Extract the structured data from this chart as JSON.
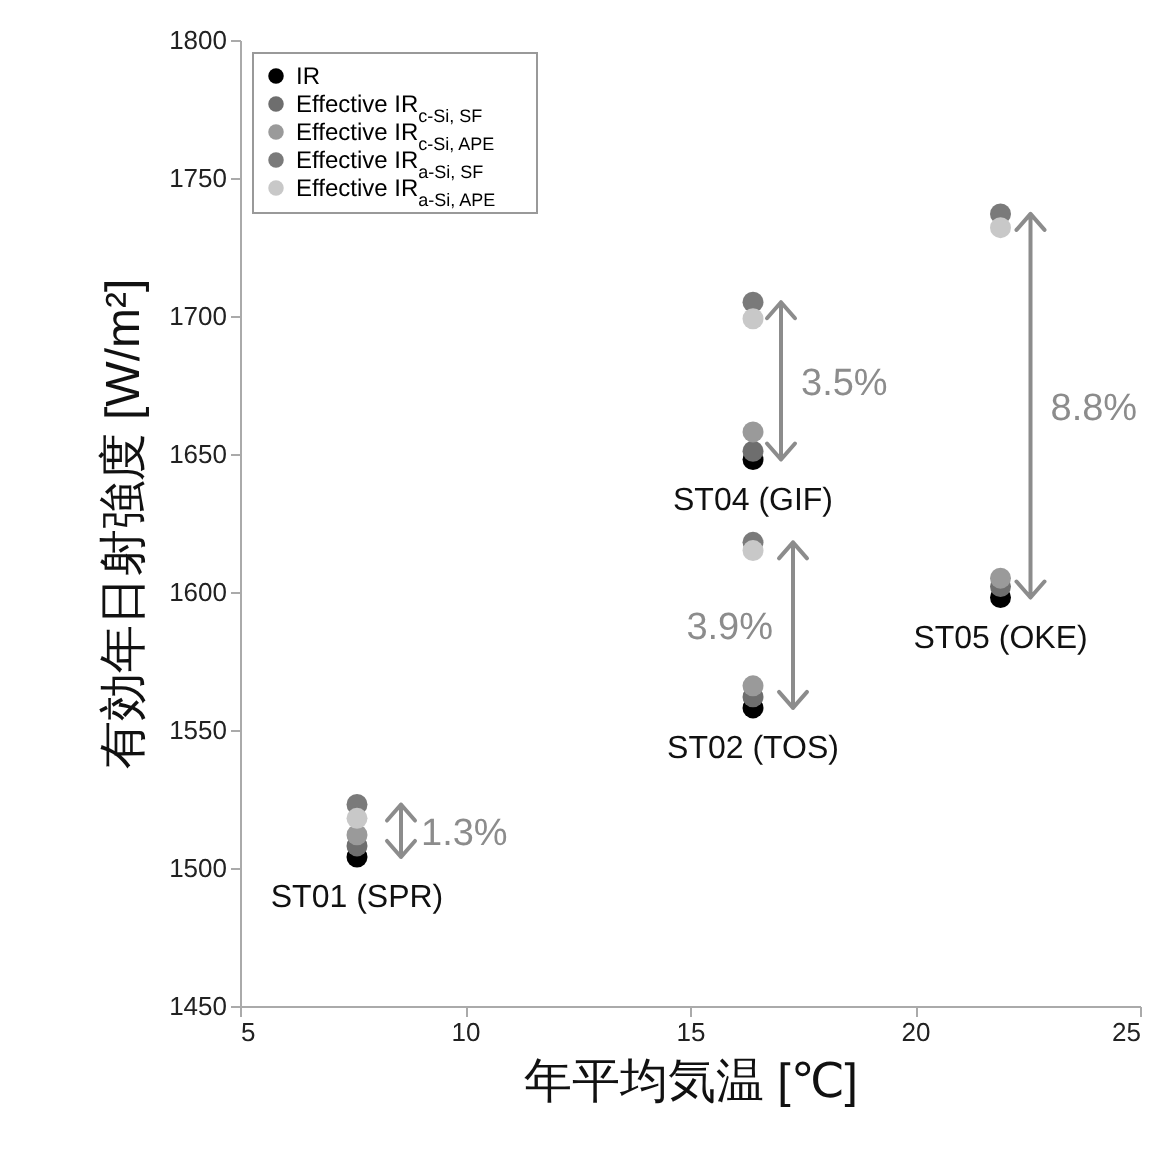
{
  "chart_data": {
    "type": "scatter",
    "xlabel": "年平均気温 [℃]",
    "ylabel": "有効年日射強度 [W/m²]",
    "x": [
      7.6,
      16.4,
      16.4,
      21.9
    ],
    "series": [
      {
        "name": "IR",
        "color": "#000000",
        "values": [
          1504,
          1648,
          1558,
          1598
        ]
      },
      {
        "name": "Effective IR$_{c-Si, SF}$",
        "color": "#6e6e6e",
        "values": [
          1508,
          1651,
          1562,
          1602
        ]
      },
      {
        "name": "Effective IR$_{c-Si, APE}$",
        "color": "#9a9a9a",
        "values": [
          1512,
          1658,
          1566,
          1605
        ]
      },
      {
        "name": "Effective IR$_{a-Si, SF}$",
        "color": "#7a7a7a",
        "values": [
          1523,
          1705,
          1618,
          1737
        ]
      },
      {
        "name": "Effective IR$_{a-Si, APE}$",
        "color": "#c8c8c8",
        "values": [
          1518,
          1699,
          1615,
          1732
        ]
      }
    ],
    "xlim": [
      5,
      25
    ],
    "xticks": [
      5,
      10,
      15,
      20,
      25
    ],
    "ylim": [
      1450,
      1800
    ],
    "yticks": [
      1450,
      1500,
      1550,
      1600,
      1650,
      1700,
      1750,
      1800
    ],
    "grid": false,
    "legend": "top left",
    "marker": "circle",
    "annotations": [
      "ST01 (SPR)",
      "ST04 (GIF)",
      "ST02 (TOS)",
      "ST05 (OKE)",
      "1.3%",
      "3.5%",
      "3.9%",
      "8.8%"
    ]
  }
}
